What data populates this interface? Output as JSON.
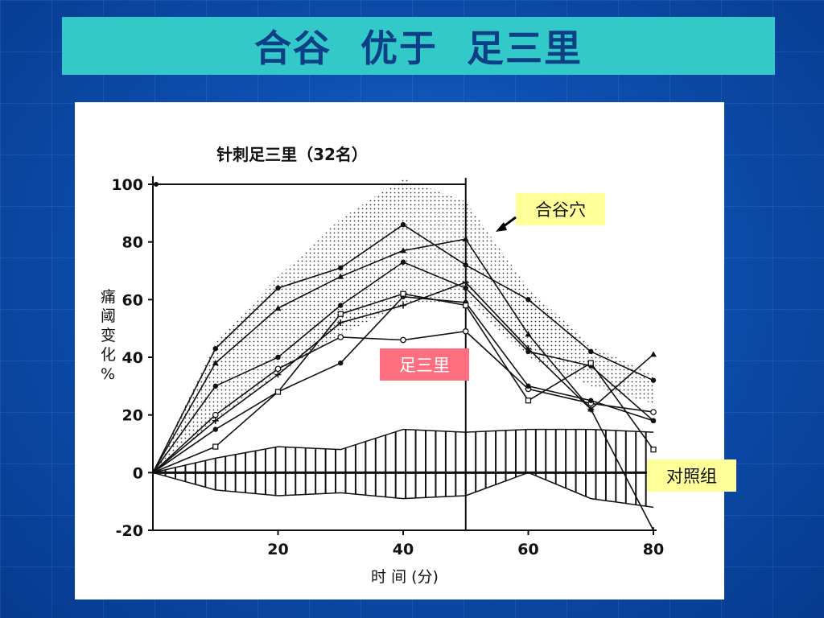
{
  "slide_title": "合谷  优于  足三里",
  "annotations": {
    "hegu": "合谷穴",
    "zusanli": "足三里",
    "control": "对照组"
  },
  "colors": {
    "title_bar": "#33c9c9",
    "title_text": "#0b3f86",
    "hegu_box": "#ffff99",
    "zusanli_box": "#ff6f7f",
    "control_box": "#ffff99"
  },
  "chart_data": {
    "type": "line",
    "title": "针刺足三里（32名）",
    "xlabel": "时 间 (分)",
    "ylabel": "痛阈变化%",
    "x_ticks": [
      20,
      40,
      60,
      80
    ],
    "y_ticks": [
      100,
      80,
      60,
      40,
      20,
      0,
      -20
    ],
    "xlim": [
      0,
      80
    ],
    "ylim": [
      -20,
      100
    ],
    "stimulation_period": [
      0,
      50
    ],
    "series": [
      {
        "marker": "filled-circle",
        "x": [
          0,
          10,
          20,
          30,
          40,
          50,
          60,
          70,
          80
        ],
        "y": [
          0,
          43,
          64,
          71,
          86,
          72,
          60,
          42,
          32
        ]
      },
      {
        "marker": "triangle",
        "x": [
          0,
          10,
          20,
          30,
          40,
          50,
          60,
          70,
          80
        ],
        "y": [
          0,
          38,
          57,
          68,
          77,
          81,
          48,
          22,
          41
        ]
      },
      {
        "marker": "filled-circle",
        "x": [
          0,
          10,
          20,
          30,
          40,
          50,
          60,
          70,
          80
        ],
        "y": [
          0,
          30,
          40,
          58,
          73,
          64,
          42,
          37,
          18
        ]
      },
      {
        "marker": "open-circle",
        "x": [
          0,
          10,
          20,
          30,
          40,
          50,
          60,
          70,
          80
        ],
        "y": [
          0,
          20,
          36,
          47,
          46,
          49,
          29,
          24,
          21
        ]
      },
      {
        "marker": "plus",
        "x": [
          0,
          10,
          20,
          30,
          40,
          50,
          60,
          70,
          80
        ],
        "y": [
          0,
          18,
          34,
          52,
          58,
          66,
          43,
          22,
          -20
        ]
      },
      {
        "marker": "filled-circle",
        "x": [
          0,
          10,
          20,
          30,
          40,
          50,
          60,
          70,
          80
        ],
        "y": [
          0,
          15,
          28,
          38,
          61,
          59,
          30,
          25,
          18
        ]
      },
      {
        "marker": "open-square",
        "x": [
          0,
          10,
          20,
          30,
          40,
          50,
          60,
          70,
          80
        ],
        "y": [
          0,
          9,
          28,
          55,
          62,
          58,
          25,
          38,
          8
        ]
      }
    ],
    "band_upper": [
      [
        0,
        0
      ],
      [
        10,
        45
      ],
      [
        20,
        68
      ],
      [
        30,
        88
      ],
      [
        40,
        102
      ],
      [
        50,
        94
      ],
      [
        60,
        64
      ],
      [
        70,
        44
      ],
      [
        80,
        34
      ]
    ],
    "band_lower": [
      [
        0,
        0
      ],
      [
        10,
        18
      ],
      [
        20,
        34
      ],
      [
        30,
        48
      ],
      [
        40,
        58
      ],
      [
        50,
        60
      ],
      [
        60,
        40
      ],
      [
        70,
        30
      ],
      [
        80,
        24
      ]
    ],
    "control_upper": [
      [
        0,
        0
      ],
      [
        10,
        5
      ],
      [
        20,
        9
      ],
      [
        30,
        8
      ],
      [
        40,
        15
      ],
      [
        50,
        14
      ],
      [
        60,
        15
      ],
      [
        70,
        15
      ],
      [
        80,
        14
      ]
    ],
    "control_lower": [
      [
        0,
        0
      ],
      [
        10,
        -6
      ],
      [
        20,
        -8
      ],
      [
        30,
        -7
      ],
      [
        40,
        -9
      ],
      [
        50,
        -8
      ],
      [
        60,
        0
      ],
      [
        70,
        -9
      ],
      [
        80,
        -12
      ]
    ]
  }
}
